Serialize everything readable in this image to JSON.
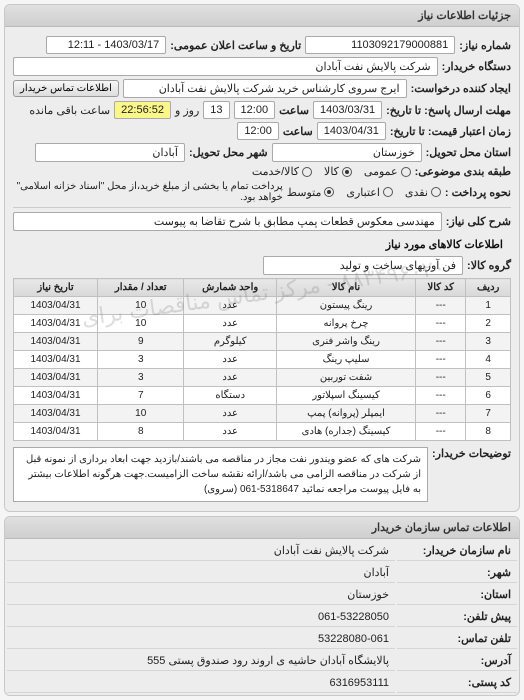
{
  "panel1": {
    "title": "جزئیات اطلاعات نیاز"
  },
  "header": {
    "reqno_label": "شماره نیاز:",
    "reqno": "1103092179000881",
    "pubdate_label": "تاریخ و ساعت اعلان عمومی:",
    "pubdate": "1403/03/17 - 12:11",
    "buyer_label": "دستگاه خریدار:",
    "buyer": "شرکت پالایش نفت آبادان",
    "requester_label": "ایجاد کننده درخواست:",
    "requester": "ایرج سروی کارشناس خرید شرکت پالایش نفت آبادان",
    "contact_btn": "اطلاعات تماس خریدار"
  },
  "deadlines": {
    "resp_label": "مهلت ارسال پاسخ: تا تاریخ:",
    "resp_date": "1403/03/31",
    "hour_label": "ساعت",
    "resp_hour": "12:00",
    "days_left": "13",
    "days_text": "روز و",
    "time_left": "22:56:52",
    "remain_text": "ساعت باقی مانده",
    "price_label": "زمان اعتبار قیمت: تا تاریخ:",
    "price_date": "1403/04/31",
    "price_hour": "12:00"
  },
  "address": {
    "province_label": "استان محل تحویل:",
    "province": "خوزستان",
    "city_label": "شهر محل تحویل:",
    "city": "آبادان"
  },
  "budget": {
    "label": "طبقه بندی موضوعی:",
    "opt_capital": "عمومی",
    "opt_capital2": "کالا",
    "opt_service": "کالا/خدمت"
  },
  "pay": {
    "label": "نحوه پرداخت :",
    "opt_cash": "نقدی",
    "opt_credit": "اعتباری",
    "opt_mid": "متوسط",
    "note": "پرداخت تمام یا بخشی از مبلغ خرید،از محل \"اسناد خزانه اسلامی\" خواهد بود."
  },
  "desc": {
    "label": "شرح کلی نیاز:",
    "value": "مهندسی معکوس قطعات پمپ مطابق با شرح تقاضا به پیوست"
  },
  "goods": {
    "section": "اطلاعات کالاهای مورد نیاز",
    "group_label": "گروه کالا:",
    "group": "فن آوریهای ساخت و تولید"
  },
  "table": {
    "cols": [
      "ردیف",
      "کد کالا",
      "نام کالا",
      "واحد شمارش",
      "تعداد / مقدار",
      "تاریخ نیاز"
    ],
    "rows": [
      [
        "1",
        "---",
        "رینگ پیستون",
        "عدد",
        "10",
        "1403/04/31"
      ],
      [
        "2",
        "---",
        "چرخ پروانه",
        "عدد",
        "10",
        "1403/04/31"
      ],
      [
        "3",
        "---",
        "رینگ واشر فنری",
        "کیلوگرم",
        "9",
        "1403/04/31"
      ],
      [
        "4",
        "---",
        "سلیپ رینگ",
        "عدد",
        "3",
        "1403/04/31"
      ],
      [
        "5",
        "---",
        "شفت توربین",
        "عدد",
        "3",
        "1403/04/31"
      ],
      [
        "6",
        "---",
        "کیسینگ اسپلاتور",
        "دستگاه",
        "7",
        "1403/04/31"
      ],
      [
        "7",
        "---",
        "ایمپلر (پروانه) پمپ",
        "عدد",
        "10",
        "1403/04/31"
      ],
      [
        "8",
        "---",
        "کیسینگ (جداره) هادی",
        "عدد",
        "8",
        "1403/04/31"
      ]
    ]
  },
  "buyer_note": {
    "label": "توضیحات خریدار:",
    "text": "شرکت های که عضو ویندور نفت مجاز در مناقصه می باشند/بازدید جهت ابعاد برداری از نمونه قبل از شرکت در مناقصه الزامی می باشد/ارائه نقشه ساخت الزامیست.جهت هرگونه اطلاعات بیشتر به فایل پیوست مراجعه نمائید 5318647-061 (سروی)"
  },
  "contact": {
    "panel_title": "اطلاعات تماس سازمان خریدار",
    "org_label": "نام سازمان خریدار:",
    "org": "شرکت پالایش نفت آبادان",
    "city_label": "شهر:",
    "city": "آبادان",
    "province_label": "استان:",
    "province": "خوزستان",
    "pre_label": "پیش تلفن:",
    "pre": "061-53228050",
    "tel_label": "تلفن تماس:",
    "tel": "53228080-061",
    "addr_label": "آدرس:",
    "addr": "پالایشگاه آبادان حاشیه ی اروند رود صندوق پستی 555",
    "post_label": "کد پستی:",
    "post": "6316953111"
  },
  "watermark": "۸۸۳۴۹۶۰۲۰ - مرکز تماس مناقصات برای"
}
